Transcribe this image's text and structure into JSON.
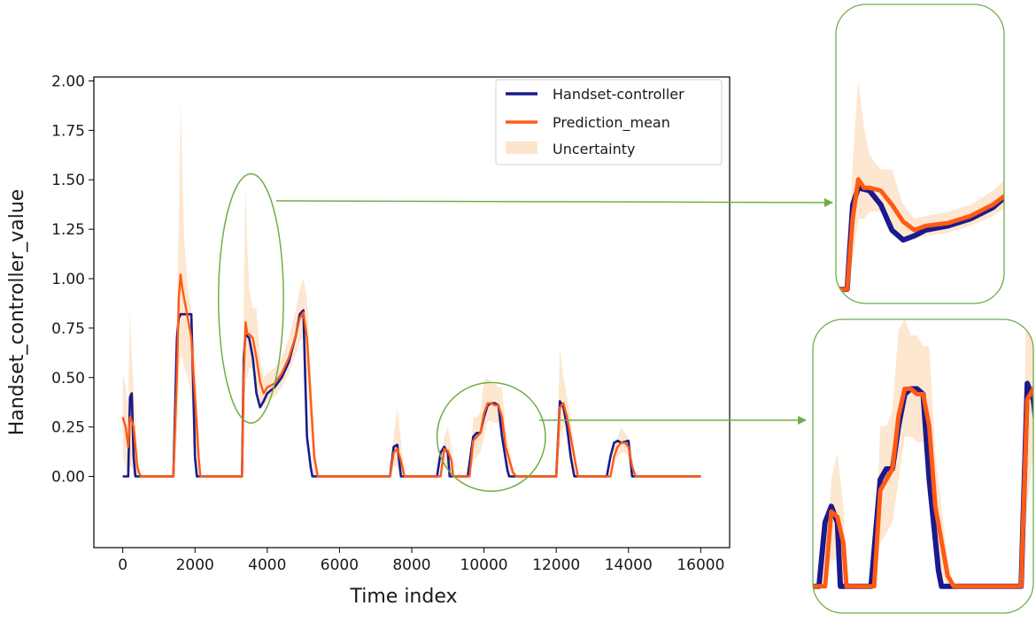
{
  "chart_data": {
    "type": "line",
    "title": "",
    "xlabel": "Time index",
    "ylabel": "Handset_controller_value",
    "xlim": [
      -800,
      16800
    ],
    "ylim": [
      -0.36,
      2.02
    ],
    "xticks": [
      "0",
      "2000",
      "4000",
      "6000",
      "8000",
      "10000",
      "12000",
      "14000",
      "16000"
    ],
    "yticks": [
      "0.00",
      "0.25",
      "0.50",
      "0.75",
      "1.00",
      "1.25",
      "1.50",
      "1.75",
      "2.00"
    ],
    "grid": false,
    "legend_position": "top-right",
    "series": [
      {
        "name": "Handset-controller",
        "color": "#1a1a8c",
        "x": [
          0,
          150,
          200,
          250,
          300,
          350,
          400,
          1400,
          1500,
          1550,
          1600,
          1700,
          1800,
          1900,
          2000,
          2050,
          3300,
          3350,
          3400,
          3500,
          3600,
          3700,
          3800,
          3900,
          4000,
          4200,
          4400,
          4600,
          4800,
          4900,
          5000,
          5050,
          5100,
          5200,
          5250,
          7400,
          7500,
          7600,
          7700,
          8700,
          8800,
          8900,
          9000,
          9050,
          9550,
          9700,
          9800,
          9900,
          10000,
          10100,
          10200,
          10300,
          10400,
          10500,
          10650,
          10700,
          12000,
          12100,
          12200,
          12300,
          12400,
          12500,
          13400,
          13500,
          13600,
          13700,
          13800,
          14000,
          14100,
          16000
        ],
        "y": [
          0,
          0,
          0.4,
          0.42,
          0.1,
          0,
          0,
          0,
          0.7,
          0.8,
          0.82,
          0.82,
          0.82,
          0.82,
          0.1,
          0,
          0,
          0.6,
          0.72,
          0.7,
          0.6,
          0.42,
          0.35,
          0.38,
          0.42,
          0.45,
          0.5,
          0.58,
          0.72,
          0.82,
          0.84,
          0.5,
          0.2,
          0.05,
          0,
          0,
          0.15,
          0.16,
          0,
          0,
          0.12,
          0.15,
          0.12,
          0,
          0,
          0.2,
          0.22,
          0.22,
          0.3,
          0.36,
          0.37,
          0.37,
          0.36,
          0.2,
          0.03,
          0,
          0,
          0.38,
          0.35,
          0.25,
          0.1,
          0,
          0,
          0.1,
          0.17,
          0.18,
          0.17,
          0.18,
          0,
          0
        ]
      },
      {
        "name": "Prediction_mean",
        "color": "#ff5a14",
        "x": [
          0,
          80,
          150,
          200,
          250,
          300,
          350,
          400,
          450,
          500,
          1400,
          1500,
          1550,
          1600,
          1650,
          1700,
          1800,
          1900,
          2000,
          2100,
          2150,
          3300,
          3350,
          3400,
          3450,
          3500,
          3600,
          3700,
          3800,
          3900,
          4000,
          4200,
          4400,
          4600,
          4800,
          4900,
          5000,
          5100,
          5200,
          5300,
          5400,
          7400,
          7500,
          7600,
          7700,
          7800,
          8800,
          8900,
          9000,
          9100,
          9150,
          9600,
          9700,
          9800,
          9900,
          10000,
          10100,
          10200,
          10300,
          10400,
          10500,
          10600,
          10800,
          10900,
          12000,
          12100,
          12200,
          12300,
          12400,
          12500,
          12600,
          13500,
          13600,
          13700,
          13800,
          13900,
          14000,
          14100,
          14200,
          16000
        ],
        "y": [
          0.3,
          0.25,
          0.15,
          0.3,
          0.28,
          0.25,
          0.15,
          0.05,
          0.02,
          0,
          0,
          0.5,
          0.9,
          1.02,
          0.95,
          0.9,
          0.8,
          0.7,
          0.4,
          0.1,
          0,
          0,
          0.5,
          0.78,
          0.72,
          0.72,
          0.7,
          0.6,
          0.48,
          0.42,
          0.45,
          0.47,
          0.52,
          0.6,
          0.72,
          0.8,
          0.83,
          0.7,
          0.4,
          0.1,
          0,
          0,
          0.12,
          0.14,
          0.08,
          0,
          0,
          0.14,
          0.13,
          0.08,
          0,
          0,
          0.18,
          0.2,
          0.22,
          0.32,
          0.37,
          0.37,
          0.36,
          0.36,
          0.3,
          0.15,
          0.02,
          0,
          0,
          0.35,
          0.37,
          0.3,
          0.2,
          0.1,
          0,
          0,
          0.1,
          0.15,
          0.17,
          0.17,
          0.15,
          0.05,
          0,
          0
        ]
      },
      {
        "name": "Uncertainty",
        "color": "#fde4cc",
        "x": [
          0,
          80,
          150,
          200,
          250,
          300,
          350,
          400,
          450,
          500,
          1400,
          1500,
          1550,
          1600,
          1650,
          1700,
          1800,
          1900,
          2000,
          2100,
          2150,
          3300,
          3350,
          3400,
          3450,
          3500,
          3600,
          3700,
          3800,
          3900,
          4000,
          4200,
          4400,
          4600,
          4800,
          4900,
          5000,
          5100,
          5200,
          5300,
          5400,
          7400,
          7500,
          7600,
          7700,
          7800,
          8800,
          8900,
          9000,
          9100,
          9150,
          9600,
          9700,
          9800,
          9900,
          10000,
          10100,
          10200,
          10300,
          10400,
          10500,
          10600,
          10800,
          10900,
          12000,
          12100,
          12200,
          12300,
          12400,
          12500,
          12600,
          13500,
          13600,
          13700,
          13800,
          13900,
          14000,
          14100,
          14200,
          16000
        ],
        "upper": [
          0.52,
          0.45,
          0.35,
          0.85,
          0.6,
          0.45,
          0.3,
          0.15,
          0.05,
          0,
          0,
          0.8,
          1.3,
          1.9,
          1.55,
          1.2,
          0.95,
          0.85,
          0.6,
          0.25,
          0,
          0,
          0.9,
          1.48,
          1.15,
          0.95,
          0.85,
          0.85,
          0.6,
          0.5,
          0.52,
          0.55,
          0.6,
          0.7,
          0.85,
          0.95,
          1.0,
          0.9,
          0.55,
          0.2,
          0,
          0,
          0.2,
          0.35,
          0.18,
          0,
          0,
          0.2,
          0.25,
          0.15,
          0,
          0,
          0.3,
          0.3,
          0.33,
          0.48,
          0.5,
          0.47,
          0.47,
          0.45,
          0.45,
          0.25,
          0.05,
          0,
          0,
          0.65,
          0.5,
          0.4,
          0.3,
          0.15,
          0,
          0,
          0.15,
          0.2,
          0.25,
          0.22,
          0.2,
          0.1,
          0,
          0
        ],
        "lower": [
          0.1,
          0.05,
          0,
          0.05,
          0.05,
          0,
          0,
          0,
          0,
          0,
          0,
          0.2,
          0.5,
          0.6,
          0.6,
          0.55,
          0.5,
          0.4,
          0.2,
          0,
          0,
          0,
          0.2,
          0.5,
          0.5,
          0.55,
          0.55,
          0.45,
          0.38,
          0.35,
          0.38,
          0.4,
          0.45,
          0.52,
          0.62,
          0.68,
          0.7,
          0.5,
          0.25,
          0,
          0,
          0,
          0.05,
          0.05,
          0,
          0,
          0,
          0.05,
          0.05,
          0,
          0,
          0,
          0.08,
          0.1,
          0.12,
          0.2,
          0.28,
          0.28,
          0.27,
          0.27,
          0.18,
          0.05,
          0,
          0,
          0,
          0.15,
          0.25,
          0.2,
          0.08,
          0,
          0,
          0,
          0.05,
          0.1,
          0.12,
          0.12,
          0.1,
          0,
          0,
          0
        ]
      }
    ],
    "insets": [
      {
        "source_xlim": [
          3200,
          4700
        ],
        "source_ylim": [
          -0.1,
          2.02
        ],
        "source_ellipse": {
          "cx": 3550,
          "cy": 0.9,
          "rx": 900,
          "ry": 0.63
        }
      },
      {
        "source_xlim": [
          8600,
          12200
        ],
        "source_ylim": [
          -0.05,
          0.5
        ],
        "source_ellipse": {
          "cx": 10200,
          "cy": 0.2,
          "rx": 1500,
          "ry": 0.275
        }
      }
    ],
    "annotation_color": "#70ad47"
  }
}
